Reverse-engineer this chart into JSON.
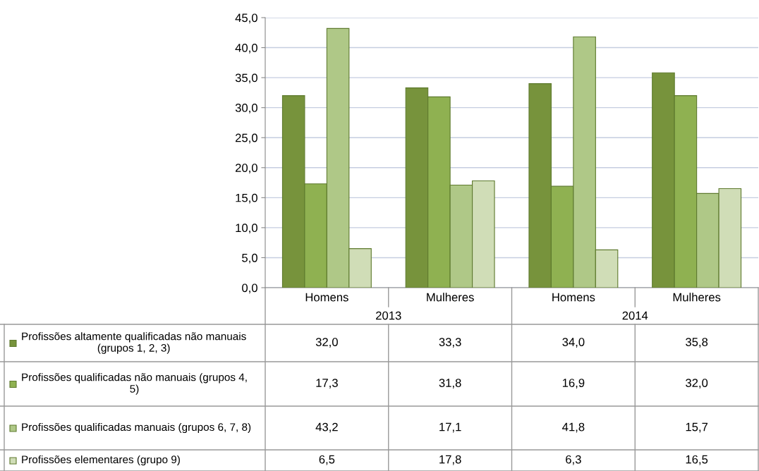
{
  "chart_data": {
    "type": "bar",
    "categories": [
      "Homens",
      "Mulheres",
      "Homens",
      "Mulheres"
    ],
    "annotations": [
      "2013",
      "2014"
    ],
    "series": [
      {
        "name": "Profissões altamente qualificadas não manuais (grupos 1, 2, 3)",
        "color": "#77933c",
        "values": [
          32.0,
          33.3,
          34.0,
          35.8
        ],
        "value_labels": [
          "32,0",
          "33,3",
          "34,0",
          "35,8"
        ]
      },
      {
        "name": "Profissões qualificadas não manuais (grupos 4, 5)",
        "color": "#8fb151",
        "values": [
          17.3,
          31.8,
          16.9,
          32.0
        ],
        "value_labels": [
          "17,3",
          "31,8",
          "16,9",
          "32,0"
        ]
      },
      {
        "name": "Profissões qualificadas manuais (grupos 6, 7, 8)",
        "color": "#afc887",
        "values": [
          43.2,
          17.1,
          41.8,
          15.7
        ],
        "value_labels": [
          "43,2",
          "17,1",
          "41,8",
          "15,7"
        ]
      },
      {
        "name": "Profissões elementares (grupo 9)",
        "color": "#d0ddb7",
        "values": [
          6.5,
          17.8,
          6.3,
          16.5
        ],
        "value_labels": [
          "6,5",
          "17,8",
          "6,3",
          "16,5"
        ]
      }
    ],
    "ylim": [
      0,
      45
    ],
    "yticks": [
      {
        "value": 0,
        "label": "0,0"
      },
      {
        "value": 5,
        "label": "5,0"
      },
      {
        "value": 10,
        "label": "10,0"
      },
      {
        "value": 15,
        "label": "15,0"
      },
      {
        "value": 20,
        "label": "20,0"
      },
      {
        "value": 25,
        "label": "25,0"
      },
      {
        "value": 30,
        "label": "30,0"
      },
      {
        "value": 35,
        "label": "35,0"
      },
      {
        "value": 40,
        "label": "40,0"
      },
      {
        "value": 45,
        "label": "45,0"
      }
    ],
    "grid": "y",
    "legend": "bottom left"
  }
}
